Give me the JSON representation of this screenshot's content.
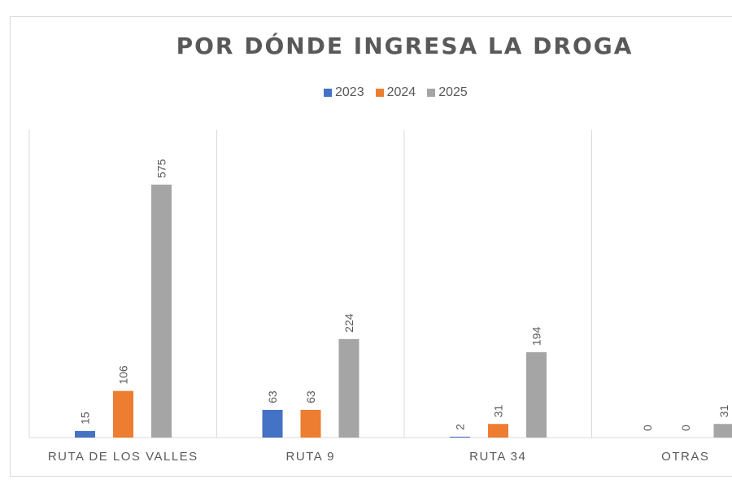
{
  "chart_data": {
    "type": "bar",
    "title": "POR DÓNDE INGRESA LA DROGA",
    "categories": [
      "RUTA DE LOS VALLES",
      "RUTA 9",
      "RUTA 34",
      "OTRAS"
    ],
    "series": [
      {
        "name": "2023",
        "color": "#4472c4",
        "values": [
          15,
          63,
          2,
          0
        ]
      },
      {
        "name": "2024",
        "color": "#ed7d31",
        "values": [
          106,
          63,
          31,
          0
        ]
      },
      {
        "name": "2025",
        "color": "#a5a5a5",
        "values": [
          575,
          224,
          194,
          31
        ]
      }
    ],
    "ylim": [
      0,
      700
    ],
    "grid": "vertical category separators",
    "legend": "top",
    "data_labels": "rotated, above bars"
  }
}
